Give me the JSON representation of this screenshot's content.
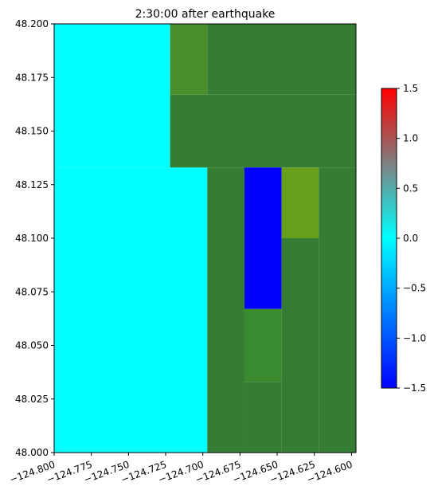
{
  "chart_data": {
    "type": "heatmap",
    "title": "2:30:00 after earthquake",
    "xlabel": "",
    "ylabel": "",
    "xlim": [
      -124.8,
      -124.597
    ],
    "ylim": [
      48.0,
      48.2
    ],
    "x_ticks": [
      -124.8,
      -124.775,
      -124.75,
      -124.725,
      -124.7,
      -124.675,
      -124.65,
      -124.625,
      -124.6
    ],
    "x_tick_labels": [
      "−124.800",
      "−124.775",
      "−124.750",
      "−124.725",
      "−124.700",
      "−124.675",
      "−124.650",
      "−124.625",
      "−124.600"
    ],
    "y_ticks": [
      48.0,
      48.025,
      48.05,
      48.075,
      48.1,
      48.125,
      48.15,
      48.175,
      48.2
    ],
    "y_tick_labels": [
      "48.000",
      "48.025",
      "48.050",
      "48.075",
      "48.100",
      "48.125",
      "48.150",
      "48.175",
      "48.200"
    ],
    "colorbar": {
      "min": -1.5,
      "max": 1.5,
      "ticks": [
        -1.5,
        -1.0,
        -0.5,
        0.0,
        0.5,
        1.0,
        1.5
      ],
      "tick_labels": [
        "−1.5",
        "−1.0",
        "−0.5",
        "0.0",
        "0.5",
        "1.0",
        "1.5"
      ],
      "colors": [
        "#0000ff",
        "#00ffff",
        "#ff0000"
      ]
    },
    "land_colors": {
      "land": "#357d33",
      "land_light": "#3a8a30",
      "land_mid": "#4a8e2c",
      "land_yellow": "#66a01a"
    },
    "cells": [
      {
        "x0": -124.8,
        "x1": -124.722,
        "y0": 48.133,
        "y1": 48.2,
        "kind": "water",
        "value": 0.0
      },
      {
        "x0": -124.8,
        "x1": -124.697,
        "y0": 48.0,
        "y1": 48.133,
        "kind": "water",
        "value": 0.0
      },
      {
        "x0": -124.722,
        "x1": -124.697,
        "y0": 48.167,
        "y1": 48.2,
        "kind": "land",
        "shade": "land_mid"
      },
      {
        "x0": -124.697,
        "x1": -124.597,
        "y0": 48.167,
        "y1": 48.2,
        "kind": "land",
        "shade": "land"
      },
      {
        "x0": -124.722,
        "x1": -124.597,
        "y0": 48.133,
        "y1": 48.167,
        "kind": "land",
        "shade": "land"
      },
      {
        "x0": -124.697,
        "x1": -124.672,
        "y0": 48.0,
        "y1": 48.133,
        "kind": "land",
        "shade": "land"
      },
      {
        "x0": -124.672,
        "x1": -124.647,
        "y0": 48.067,
        "y1": 48.133,
        "kind": "water",
        "value": -1.5
      },
      {
        "x0": -124.647,
        "x1": -124.622,
        "y0": 48.1,
        "y1": 48.133,
        "kind": "land",
        "shade": "land_yellow"
      },
      {
        "x0": -124.622,
        "x1": -124.597,
        "y0": 48.0,
        "y1": 48.133,
        "kind": "land",
        "shade": "land"
      },
      {
        "x0": -124.647,
        "x1": -124.622,
        "y0": 48.0,
        "y1": 48.1,
        "kind": "land",
        "shade": "land"
      },
      {
        "x0": -124.672,
        "x1": -124.647,
        "y0": 48.033,
        "y1": 48.067,
        "kind": "land",
        "shade": "land_light"
      },
      {
        "x0": -124.672,
        "x1": -124.647,
        "y0": 48.0,
        "y1": 48.033,
        "kind": "land",
        "shade": "land"
      }
    ]
  }
}
